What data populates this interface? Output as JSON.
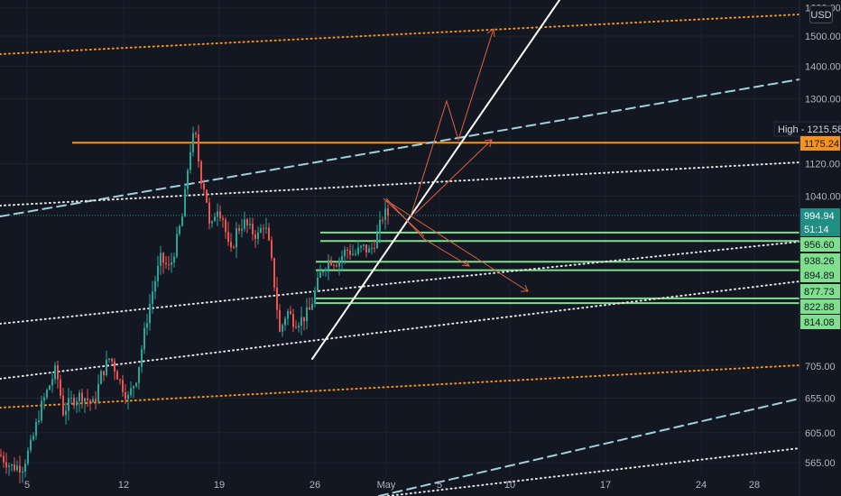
{
  "colors": {
    "background": "#131722",
    "up": "#26a69a",
    "down": "#ef5350",
    "resistance": "#f7931a",
    "support": "#7ee08c",
    "trend_cyan": "#9fd3dc",
    "trend_white": "#ffffff",
    "arrow": "#e0603f"
  },
  "currency_button": "USD",
  "chart_data": {
    "type": "candlestick",
    "title": "",
    "xlabel": "",
    "ylabel": "",
    "y_scale": "log",
    "ylim": [
      548,
      1630
    ],
    "x_ticks": [
      "5",
      "12",
      "19",
      "26",
      "May",
      "5",
      "10",
      "17",
      "24",
      "28"
    ],
    "y_ticks": [
      1600,
      1500,
      1400,
      1300,
      1175.24,
      1120,
      1040,
      994.94,
      956.6,
      938.26,
      894.89,
      877.73,
      822.88,
      814.08,
      705,
      655,
      605,
      565
    ],
    "y_tick_labels": [
      "1600.00",
      "1500.00",
      "1400.00",
      "1300.00",
      "1175.24",
      "1120.00",
      "1040.00",
      "994.94",
      "956.60",
      "938.26",
      "894.89",
      "877.73",
      "822.88",
      "814.08",
      "705.00",
      "655.00",
      "605.00",
      "565.00"
    ],
    "price_tags": [
      {
        "label": "High",
        "value_text": "1215.58",
        "kind": "high"
      },
      {
        "label": "",
        "value_text": "1175.24",
        "kind": "resistance"
      },
      {
        "label": "",
        "value_text": "994.94",
        "kind": "last"
      },
      {
        "label": "",
        "value_text": "51:14",
        "kind": "countdown"
      },
      {
        "label": "",
        "value_text": "956.60",
        "kind": "support"
      },
      {
        "label": "",
        "value_text": "938.26",
        "kind": "support"
      },
      {
        "label": "",
        "value_text": "894.89",
        "kind": "support"
      },
      {
        "label": "",
        "value_text": "877.73",
        "kind": "support"
      },
      {
        "label": "",
        "value_text": "822.88",
        "kind": "support"
      },
      {
        "label": "",
        "value_text": "814.08",
        "kind": "support"
      }
    ],
    "last_price": 994.94,
    "resistance_level": 1175.24,
    "support_levels": [
      956.6,
      938.26,
      894.89,
      877.73,
      822.88,
      814.08
    ],
    "price_path": [
      [
        0,
        575
      ],
      [
        12,
        560
      ],
      [
        25,
        560
      ],
      [
        35,
        590
      ],
      [
        45,
        640
      ],
      [
        55,
        675
      ],
      [
        62,
        700
      ],
      [
        70,
        635
      ],
      [
        78,
        650
      ],
      [
        90,
        660
      ],
      [
        104,
        645
      ],
      [
        112,
        690
      ],
      [
        122,
        720
      ],
      [
        133,
        680
      ],
      [
        142,
        655
      ],
      [
        152,
        690
      ],
      [
        160,
        760
      ],
      [
        168,
        830
      ],
      [
        178,
        900
      ],
      [
        188,
        880
      ],
      [
        196,
        940
      ],
      [
        203,
        1000
      ],
      [
        210,
        1150
      ],
      [
        216,
        1205
      ],
      [
        222,
        1090
      ],
      [
        228,
        1050
      ],
      [
        233,
        950
      ],
      [
        240,
        1020
      ],
      [
        247,
        990
      ],
      [
        255,
        905
      ],
      [
        262,
        960
      ],
      [
        270,
        980
      ],
      [
        278,
        960
      ],
      [
        286,
        950
      ],
      [
        293,
        980
      ],
      [
        299,
        920
      ],
      [
        304,
        850
      ],
      [
        310,
        760
      ],
      [
        318,
        800
      ],
      [
        326,
        780
      ],
      [
        335,
        785
      ],
      [
        343,
        800
      ],
      [
        350,
        840
      ],
      [
        357,
        880
      ],
      [
        365,
        900
      ],
      [
        374,
        895
      ],
      [
        384,
        920
      ],
      [
        393,
        910
      ],
      [
        402,
        925
      ],
      [
        410,
        915
      ],
      [
        418,
        950
      ],
      [
        425,
        1000
      ],
      [
        432,
        995
      ]
    ]
  }
}
